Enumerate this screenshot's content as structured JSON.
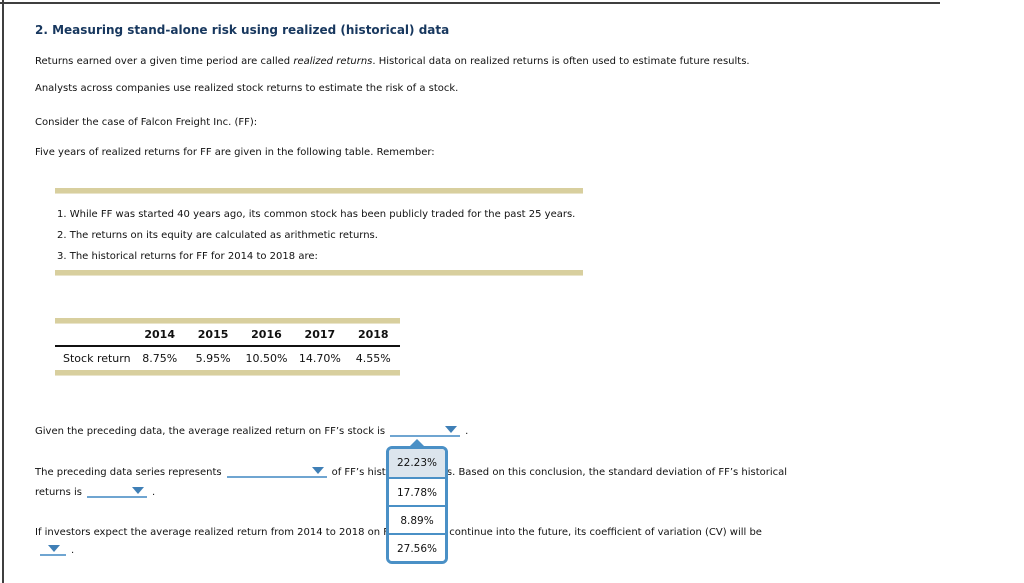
{
  "page": {
    "title": "2. Measuring stand-alone risk using realized (historical) data"
  },
  "intro": {
    "line1_before_italic": "Returns earned over a given time period are called ",
    "line1_italic": "realized returns",
    "line1_after_italic": ". Historical data on realized returns is often used to estimate future results.",
    "line2": "Analysts across companies use realized stock returns to estimate the risk of a stock.",
    "consider": "Consider the case of Falcon Freight Inc. (FF):",
    "five_years": "Five years of realized returns for FF are given in the following table. Remember:"
  },
  "memo": {
    "items": [
      "1. While FF was started 40 years ago, its common stock has been publicly traded for the past 25 years.",
      "2. The returns on its equity are calculated as arithmetic returns.",
      "3. The historical returns for FF for 2014 to 2018 are:"
    ]
  },
  "returns_table": {
    "row_label": "Stock return",
    "years": [
      "2014",
      "2015",
      "2016",
      "2017",
      "2018"
    ],
    "values": [
      "8.75%",
      "5.95%",
      "10.50%",
      "14.70%",
      "4.55%"
    ]
  },
  "questions": {
    "q1_before": "Given the preceding data, the average realized return on FF’s stock is",
    "q1_after": ".",
    "q2_line1_before": "The preceding data series represents",
    "q2_line1_after": "of FF’s historical returns. Based on this conclusion, the standard deviation of FF’s historical",
    "q2_line2_before": "returns is",
    "q2_line2_after": ".",
    "q3_line1": "If investors expect the average realized return from 2014 to 2018 on FF’s stock to continue into the future, its coefficient of variation (CV) will be",
    "q3_line2_after": "."
  },
  "dropdown": {
    "options": [
      "22.23%",
      "17.78%",
      "8.89%",
      "27.56%"
    ],
    "highlighted_index": 0
  },
  "colors": {
    "accent_blue": "#4a90c6",
    "underline_blue": "#6fa5d1",
    "arrow_blue": "#3f7fb6",
    "title_navy": "#17375e",
    "tan_bar": "#d8cf9e",
    "option_highlight": "#dce5ed"
  }
}
